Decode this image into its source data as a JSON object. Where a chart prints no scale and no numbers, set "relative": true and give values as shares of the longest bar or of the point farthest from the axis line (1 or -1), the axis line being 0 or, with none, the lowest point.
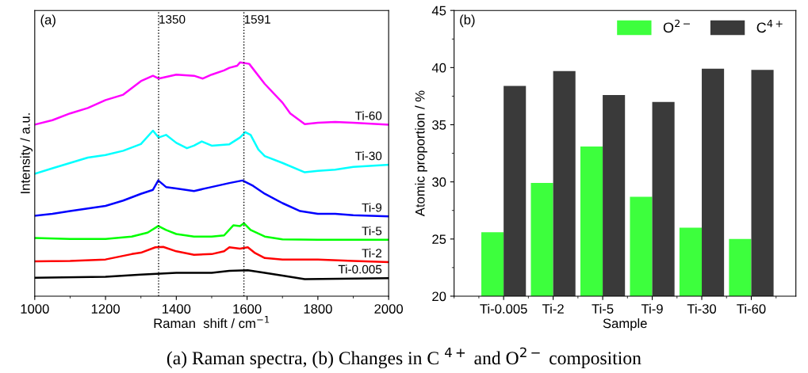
{
  "chart_data": [
    {
      "type": "line",
      "relative": true,
      "xlabel": "Raman  shift / cm$^{−1}$",
      "ylabel": "Intensity / a.u.",
      "annotations": [
        "(a)"
      ],
      "xlim": [
        1000,
        2000
      ],
      "xticks": [
        1000,
        1200,
        1400,
        1600,
        1800,
        2000
      ],
      "tick_labels": "x",
      "grid": false,
      "marker": "none",
      "line_style": "solid",
      "ref_lines": [
        {
          "axis": "x",
          "value": 1350,
          "label": "1350",
          "color": "#000000",
          "line_style": "dotted"
        },
        {
          "axis": "x",
          "value": 1591,
          "label": "1591",
          "color": "#000000",
          "line_style": "dotted"
        }
      ],
      "series": [
        {
          "name": "Ti-60",
          "color": "#ff00ff",
          "x": [
            1000,
            1050,
            1100,
            1150,
            1200,
            1250,
            1300,
            1334,
            1350,
            1400,
            1450,
            1475,
            1500,
            1535,
            1550,
            1572,
            1580,
            1606,
            1650,
            1700,
            1722,
            1763,
            1800,
            1849,
            1900,
            2000
          ],
          "values": [
            0.734,
            0.753,
            0.782,
            0.805,
            0.839,
            0.862,
            0.92,
            0.943,
            0.931,
            0.948,
            0.943,
            0.931,
            0.948,
            0.966,
            0.977,
            0.986,
            1.0,
            0.994,
            0.908,
            0.828,
            0.782,
            0.736,
            0.742,
            0.745,
            0.742,
            0.734
          ]
        },
        {
          "name": "Ti-30",
          "color": "#00ffff",
          "x": [
            1000,
            1050,
            1100,
            1150,
            1200,
            1250,
            1300,
            1334,
            1350,
            1371,
            1400,
            1430,
            1450,
            1472,
            1500,
            1550,
            1580,
            1595,
            1610,
            1632,
            1650,
            1700,
            1763,
            1800,
            1849,
            1900,
            2000
          ],
          "values": [
            0.524,
            0.547,
            0.57,
            0.593,
            0.604,
            0.622,
            0.651,
            0.708,
            0.679,
            0.69,
            0.656,
            0.633,
            0.644,
            0.662,
            0.644,
            0.65,
            0.679,
            0.702,
            0.69,
            0.627,
            0.599,
            0.57,
            0.53,
            0.536,
            0.541,
            0.553,
            0.562
          ]
        },
        {
          "name": "Ti-9",
          "color": "#0000ff",
          "x": [
            1000,
            1050,
            1100,
            1150,
            1200,
            1250,
            1300,
            1334,
            1349,
            1371,
            1400,
            1450,
            1500,
            1550,
            1587,
            1617,
            1650,
            1700,
            1750,
            1800,
            1849,
            1900,
            2000
          ],
          "values": [
            0.344,
            0.352,
            0.364,
            0.375,
            0.386,
            0.409,
            0.438,
            0.455,
            0.495,
            0.467,
            0.461,
            0.45,
            0.467,
            0.484,
            0.495,
            0.472,
            0.438,
            0.398,
            0.364,
            0.352,
            0.352,
            0.346,
            0.341
          ]
        },
        {
          "name": "Ti-5",
          "color": "#00ff00",
          "x": [
            1000,
            1100,
            1200,
            1274,
            1319,
            1349,
            1371,
            1400,
            1450,
            1500,
            1535,
            1561,
            1580,
            1591,
            1610,
            1650,
            1700,
            1800,
            2000
          ],
          "values": [
            0.249,
            0.245,
            0.245,
            0.255,
            0.272,
            0.3,
            0.283,
            0.266,
            0.255,
            0.255,
            0.26,
            0.303,
            0.3,
            0.312,
            0.283,
            0.255,
            0.243,
            0.241,
            0.241
          ]
        },
        {
          "name": "Ti-2",
          "color": "#ff0000",
          "x": [
            1000,
            1100,
            1200,
            1274,
            1300,
            1341,
            1363,
            1400,
            1450,
            1500,
            1535,
            1550,
            1580,
            1602,
            1621,
            1650,
            1700,
            1800,
            1900,
            2000
          ],
          "values": [
            0.149,
            0.151,
            0.157,
            0.18,
            0.186,
            0.209,
            0.211,
            0.192,
            0.177,
            0.18,
            0.192,
            0.209,
            0.203,
            0.209,
            0.186,
            0.163,
            0.157,
            0.157,
            0.151,
            0.146
          ]
        },
        {
          "name": "Ti-0.005",
          "color": "#000000",
          "x": [
            1000,
            1200,
            1300,
            1400,
            1500,
            1550,
            1602,
            1650,
            1700,
            1763,
            2000
          ],
          "values": [
            0.079,
            0.083,
            0.092,
            0.1,
            0.1,
            0.108,
            0.111,
            0.1,
            0.088,
            0.073,
            0.077
          ]
        }
      ]
    },
    {
      "type": "bar",
      "xlabel": "Sample",
      "ylabel": "Atomic proportion / %",
      "annotations": [
        "(b)",
        "(a) Raman spectra, (b) Changes in C $^{4+}$ and O$^{2−}$ composition"
      ],
      "categories": [
        "Ti-0.005",
        "Ti-2",
        "Ti-5",
        "Ti-9",
        "Ti-30",
        "Ti-60"
      ],
      "ylim": [
        20,
        45
      ],
      "yticks": [
        20,
        25,
        30,
        35,
        40,
        45
      ],
      "legend": "top right",
      "grid": false,
      "series": [
        {
          "name": "O$^{2−}$",
          "color": "#3dff3d",
          "values": [
            25.6,
            29.9,
            33.1,
            28.7,
            26.0,
            25.0
          ]
        },
        {
          "name": "C$^{4+}$",
          "color": "#3a3a3a",
          "values": [
            38.4,
            39.7,
            37.6,
            37.0,
            39.9,
            39.8
          ]
        }
      ]
    }
  ]
}
